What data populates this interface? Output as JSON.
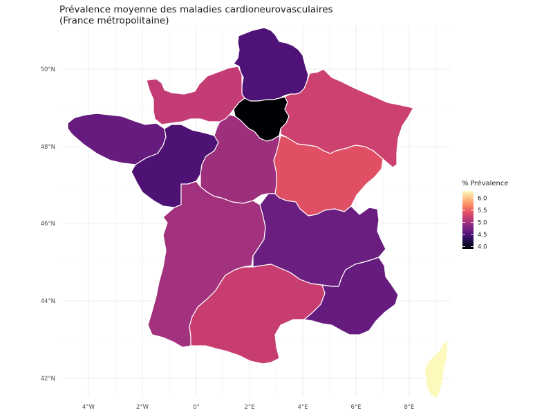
{
  "title": {
    "line1": "Prévalence moyenne des maladies cardioneurovasculaires",
    "line2": "(France métropolitaine)"
  },
  "chart_data": {
    "type": "choropleth",
    "title": "Prévalence moyenne des maladies cardioneurovasculaires (France métropolitaine)",
    "fill_label": "% Prévalence",
    "color_scale": "magma",
    "value_range": [
      3.9,
      6.3
    ],
    "legend_ticks": [
      6.0,
      5.5,
      5.0,
      4.5,
      4.0
    ],
    "legend_position": "right",
    "x_axis": {
      "ticks": [
        "4°W",
        "2°W",
        "0°",
        "2°E",
        "4°E",
        "6°E",
        "8°E"
      ],
      "range": [
        -5,
        9.5
      ]
    },
    "y_axis": {
      "ticks": [
        "50°N",
        "48°N",
        "46°N",
        "44°N",
        "42°N"
      ],
      "range": [
        41.3,
        51.2
      ]
    },
    "grid": true,
    "regions": [
      {
        "name": "Hauts-de-France",
        "value": 4.45,
        "color": "#4f1277"
      },
      {
        "name": "Normandie",
        "value": 5.45,
        "color": "#c43c75"
      },
      {
        "name": "Île-de-France",
        "value": 3.95,
        "color": "#000004"
      },
      {
        "name": "Grand Est",
        "value": 5.5,
        "color": "#cc416e"
      },
      {
        "name": "Bretagne",
        "value": 4.7,
        "color": "#661c7e"
      },
      {
        "name": "Pays de la Loire",
        "value": 4.45,
        "color": "#4e1275"
      },
      {
        "name": "Centre-Val de Loire",
        "value": 5.1,
        "color": "#9d2f7c"
      },
      {
        "name": "Bourgogne-Franche-Comté",
        "value": 5.65,
        "color": "#e14f65"
      },
      {
        "name": "Nouvelle-Aquitaine",
        "value": 5.2,
        "color": "#a3327e"
      },
      {
        "name": "Auvergne-Rhône-Alpes",
        "value": 4.7,
        "color": "#6a1f80"
      },
      {
        "name": "Occitanie",
        "value": 5.5,
        "color": "#c83d70"
      },
      {
        "name": "Provence-Alpes-Côte d'Azur",
        "value": 4.65,
        "color": "#661b7e"
      },
      {
        "name": "Corse",
        "value": 6.3,
        "color": "#fdf8bc"
      }
    ]
  }
}
